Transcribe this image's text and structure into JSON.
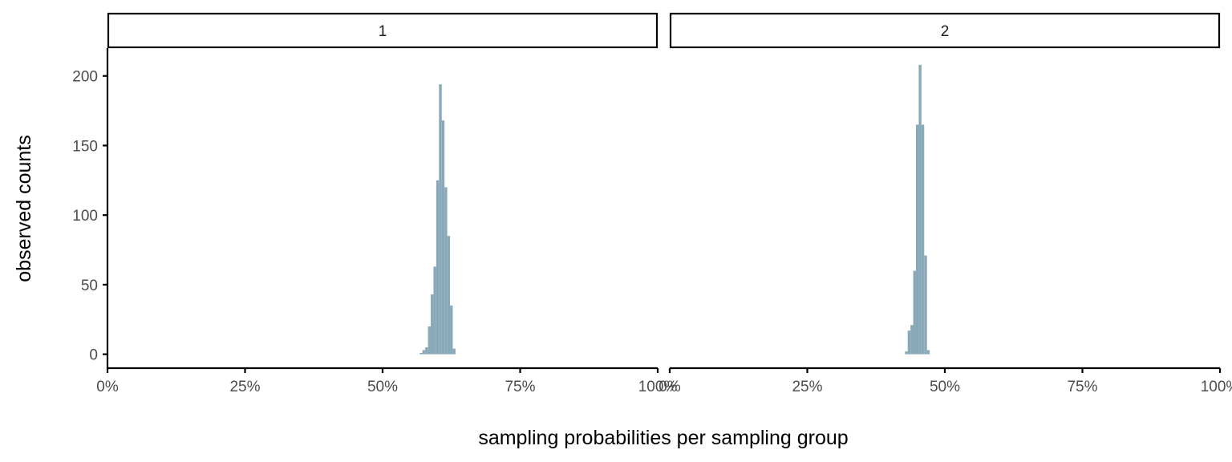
{
  "colors": {
    "bar": "#89a9b9",
    "axis": "#000000",
    "strip_fill": "#ffffff",
    "strip_border": "#000000"
  },
  "chart_data": {
    "type": "bar",
    "subtype": "histogram",
    "xlabel": "sampling probabilities per sampling group",
    "ylabel": "observed counts",
    "xlim": [
      0,
      1
    ],
    "ylim": [
      -10,
      220
    ],
    "x_ticks": [
      0,
      0.25,
      0.5,
      0.75,
      1
    ],
    "x_tick_labels": [
      "0%",
      "25%",
      "50%",
      "75%",
      "100%"
    ],
    "y_ticks": [
      0,
      50,
      100,
      150,
      200
    ],
    "y_tick_labels": [
      "0",
      "50",
      "100",
      "150",
      "200"
    ],
    "bin_width": 0.005,
    "grid": false,
    "facets": [
      {
        "label": "1",
        "bin_starts": [
          0.5675,
          0.5725,
          0.5775,
          0.5825,
          0.5875,
          0.5925,
          0.5975,
          0.6025,
          0.6075,
          0.6125,
          0.6175,
          0.6225,
          0.6275
        ],
        "counts": [
          1,
          3,
          5,
          20,
          43,
          63,
          125,
          194,
          168,
          120,
          85,
          35,
          4
        ]
      },
      {
        "label": "2",
        "bin_starts": [
          0.4275,
          0.4325,
          0.4375,
          0.4425,
          0.4475,
          0.4525,
          0.4575,
          0.4625,
          0.4675
        ],
        "counts": [
          2,
          17,
          21,
          60,
          165,
          208,
          165,
          71,
          3
        ]
      }
    ]
  }
}
